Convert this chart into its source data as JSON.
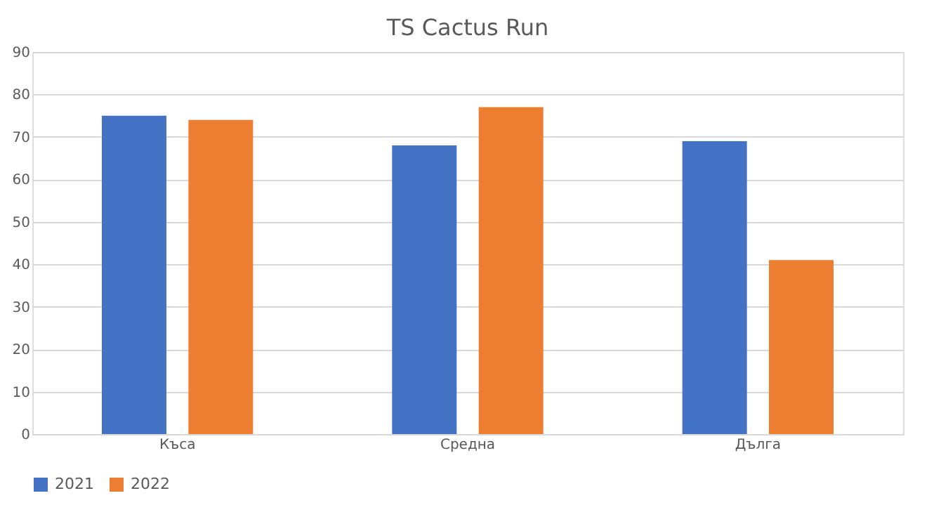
{
  "chart_data": {
    "type": "bar",
    "title": "TS Cactus Run",
    "categories": [
      "Къса",
      "Средна",
      "Дълга"
    ],
    "series": [
      {
        "name": "2021",
        "color": "#4472c4",
        "values": [
          75,
          68,
          69
        ]
      },
      {
        "name": "2022",
        "color": "#ed7d31",
        "values": [
          74,
          77,
          41
        ]
      }
    ],
    "ylim": [
      0,
      90
    ],
    "yticks": [
      0,
      10,
      20,
      30,
      40,
      50,
      60,
      70,
      80,
      90
    ],
    "grid": "y",
    "legend": "bottom"
  }
}
